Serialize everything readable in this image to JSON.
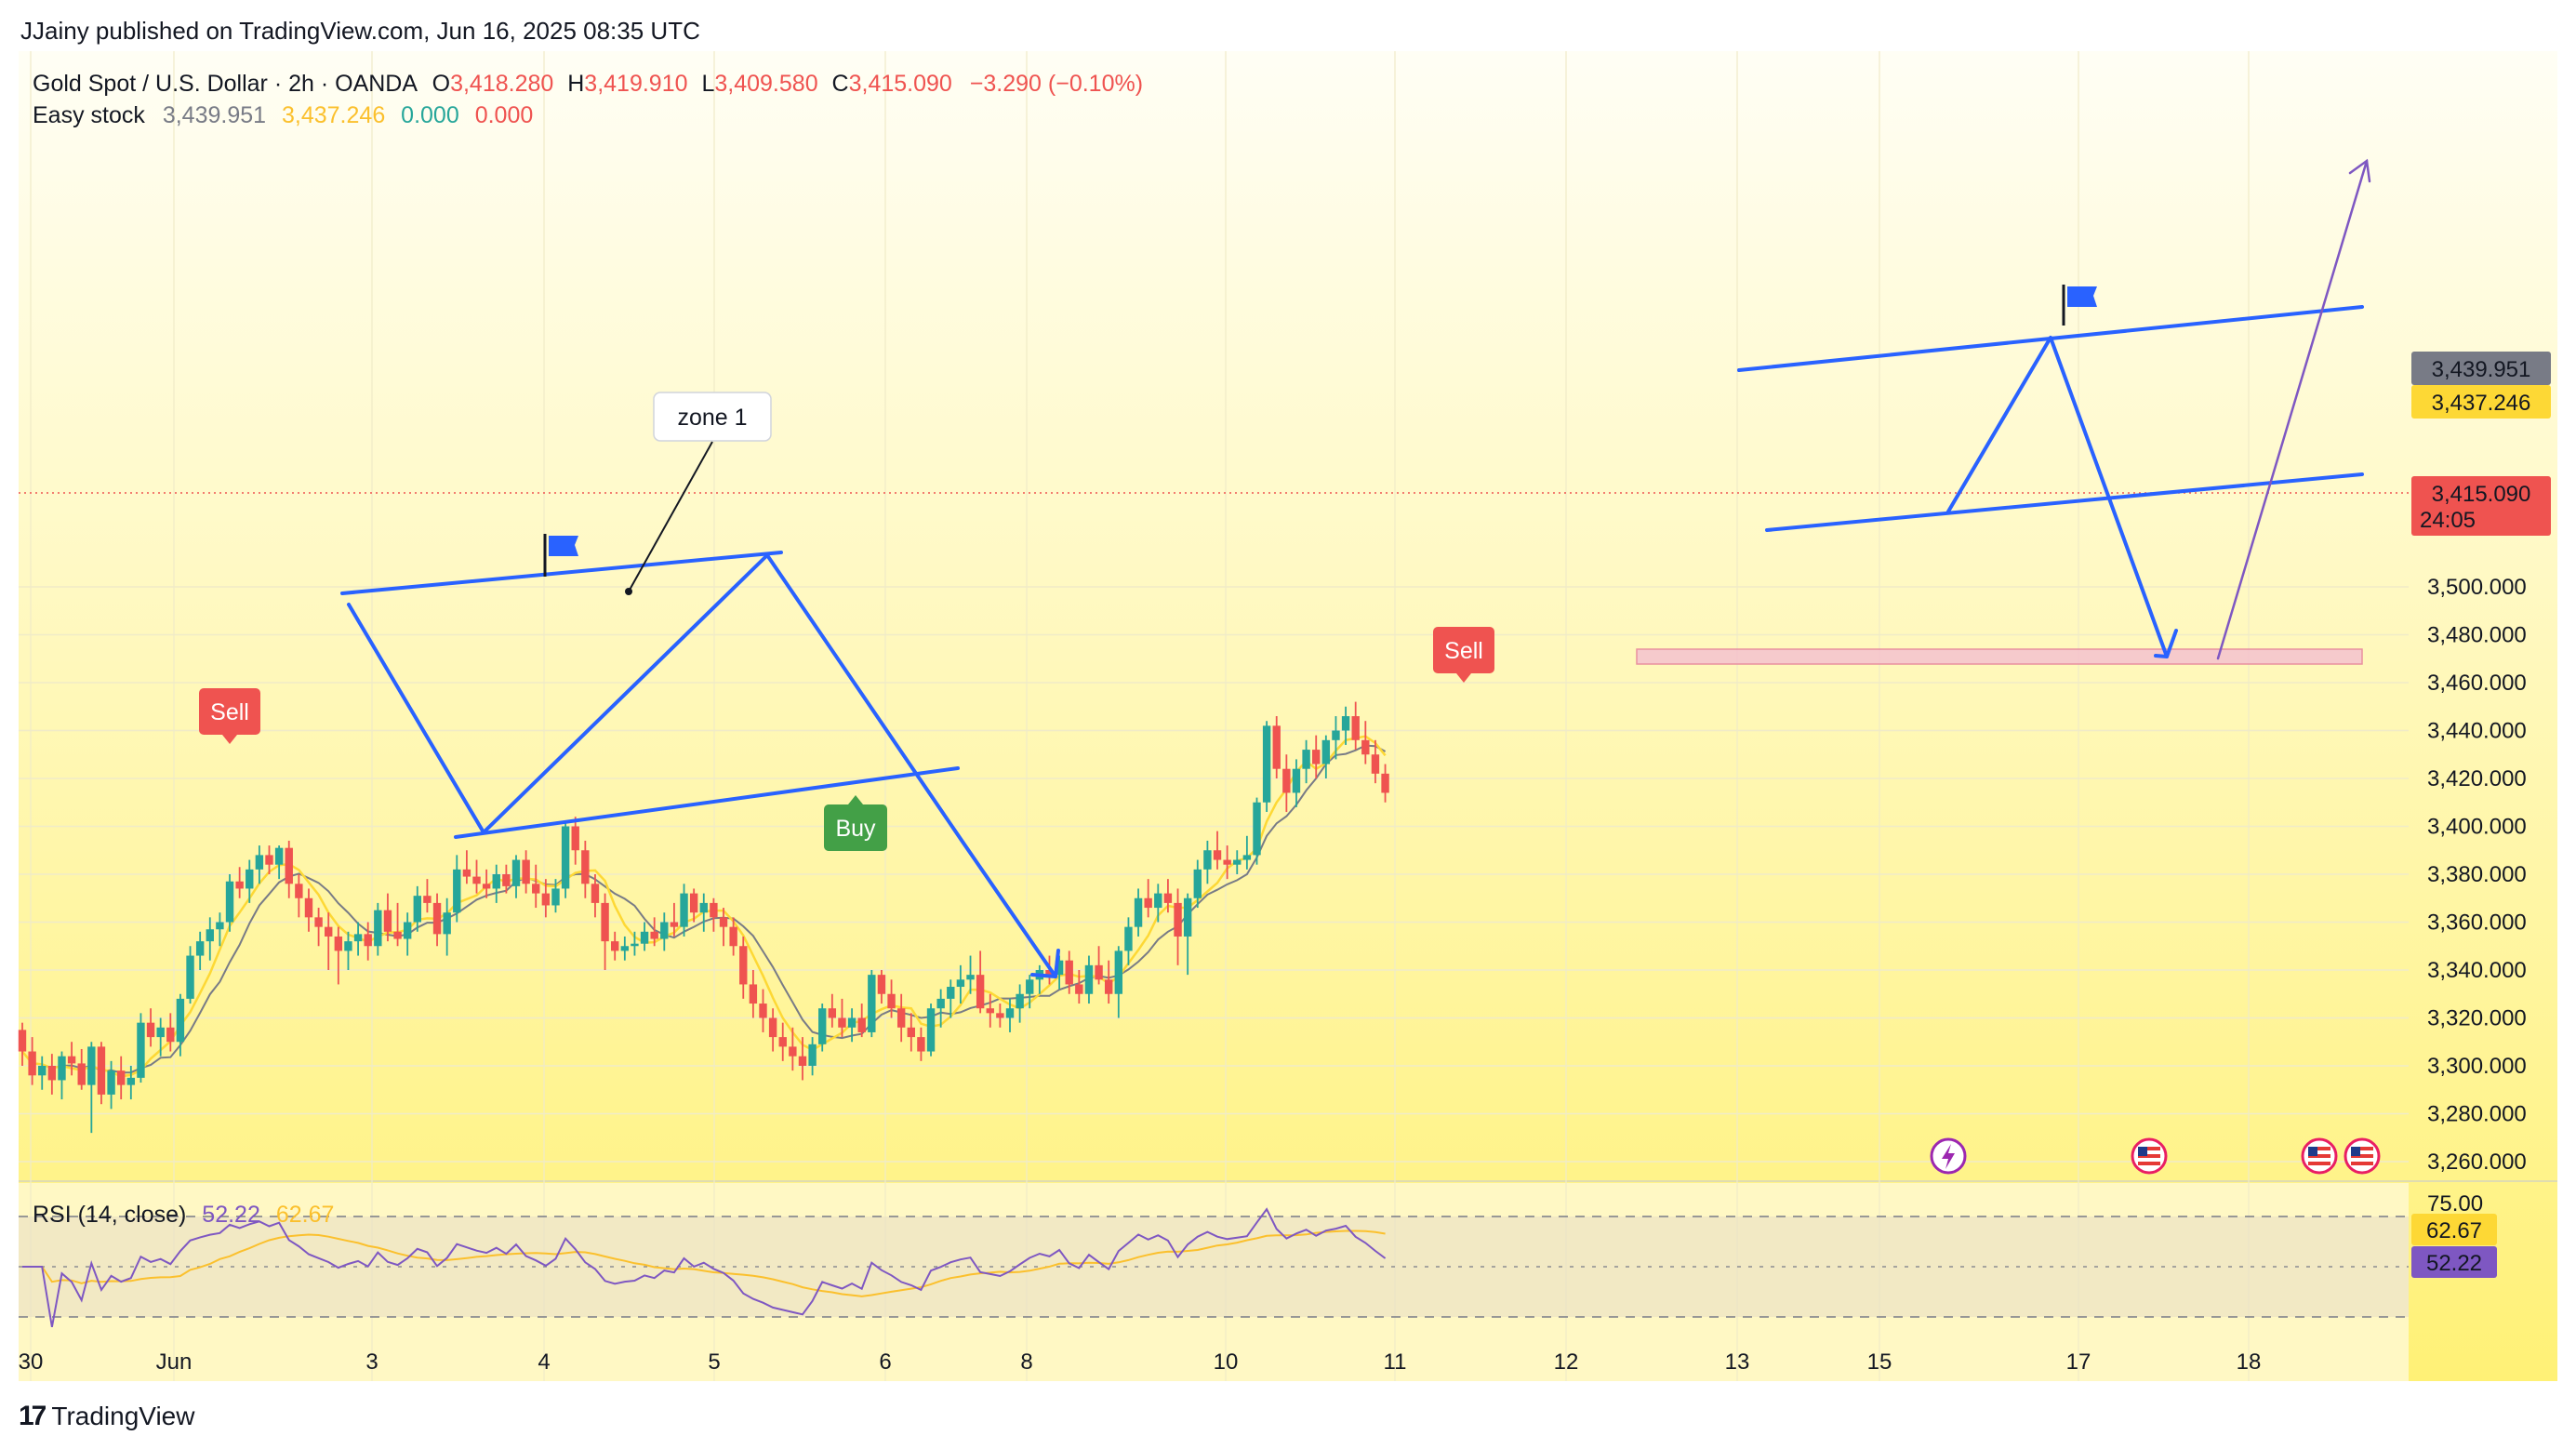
{
  "header": {
    "publish_line": "JJainy published on TradingView.com, Jun 16, 2025 08:35 UTC"
  },
  "legend": {
    "symbol": "Gold Spot / U.S. Dollar · 2h · OANDA",
    "o_label": "O",
    "o_value": "3,418.280",
    "h_label": "H",
    "h_value": "3,419.910",
    "l_label": "L",
    "l_value": "3,409.580",
    "c_label": "C",
    "c_value": "3,415.090",
    "change": "−3.290 (−0.10%)",
    "indicator_name": "Easy stock",
    "ind_v1": "3,439.951",
    "ind_v2": "3,437.246",
    "ind_v3": "0.000",
    "ind_v4": "0.000"
  },
  "rsi": {
    "label": "RSI (14, close)",
    "value": "52.22",
    "ma_value": "62.67",
    "level_upper": "75.00",
    "badge_rsi": "52.22",
    "badge_ma": "62.67"
  },
  "price_badges": {
    "ind1": "3,439.951",
    "ind2": "3,437.246",
    "last": "3,415.090",
    "countdown": "24:05"
  },
  "annotations": {
    "zone_label": "zone 1",
    "sell_label": "Sell",
    "buy_label": "Buy"
  },
  "footer": {
    "logo_text": "TradingView"
  },
  "colors": {
    "up": "#26a69a",
    "down": "#ef5350",
    "bg_top": "#fffde7",
    "bg_bottom": "#fff176",
    "pattern_line": "#2962ff",
    "rsi_line": "#7e57c2",
    "rsi_ma": "#fbc02d",
    "zone_fill": "#f8bbd0",
    "ind_gray": "#787b86",
    "ind_yellow": "#fdd835"
  },
  "chart_data": {
    "type": "candlestick",
    "title": "Gold Spot / U.S. Dollar · 2h · OANDA",
    "y_range": [
      3250,
      3510
    ],
    "y_ticks": [
      3260,
      3280,
      3300,
      3320,
      3340,
      3360,
      3380,
      3400,
      3420,
      3440,
      3460,
      3480,
      3500
    ],
    "y_tick_labels": [
      "3,260.000",
      "3,280.000",
      "3,300.000",
      "3,320.000",
      "3,340.000",
      "3,360.000",
      "3,380.000",
      "3,400.000",
      "3,420.000",
      "3,440.000",
      "3,460.000",
      "3,480.000",
      "3,500.000"
    ],
    "x_ticks": [
      "30",
      "Jun",
      "3",
      "4",
      "5",
      "6",
      "8",
      "10",
      "11",
      "12",
      "13",
      "15",
      "17",
      "18"
    ],
    "grid": true,
    "candles": [
      [
        3315,
        3318,
        3300,
        3306
      ],
      [
        3306,
        3312,
        3292,
        3296
      ],
      [
        3296,
        3304,
        3290,
        3300
      ],
      [
        3300,
        3305,
        3288,
        3294
      ],
      [
        3294,
        3306,
        3286,
        3304
      ],
      [
        3304,
        3310,
        3296,
        3301
      ],
      [
        3301,
        3307,
        3290,
        3292
      ],
      [
        3292,
        3310,
        3272,
        3308
      ],
      [
        3308,
        3310,
        3284,
        3288
      ],
      [
        3288,
        3302,
        3282,
        3298
      ],
      [
        3298,
        3304,
        3286,
        3292
      ],
      [
        3292,
        3300,
        3286,
        3295
      ],
      [
        3295,
        3322,
        3293,
        3318
      ],
      [
        3318,
        3324,
        3308,
        3312
      ],
      [
        3312,
        3320,
        3304,
        3316
      ],
      [
        3316,
        3322,
        3306,
        3310
      ],
      [
        3310,
        3330,
        3304,
        3328
      ],
      [
        3328,
        3350,
        3326,
        3346
      ],
      [
        3346,
        3356,
        3340,
        3352
      ],
      [
        3352,
        3362,
        3344,
        3357
      ],
      [
        3357,
        3364,
        3350,
        3360
      ],
      [
        3360,
        3380,
        3356,
        3377
      ],
      [
        3377,
        3383,
        3370,
        3374
      ],
      [
        3374,
        3386,
        3368,
        3382
      ],
      [
        3382,
        3392,
        3376,
        3388
      ],
      [
        3388,
        3392,
        3380,
        3384
      ],
      [
        3384,
        3392,
        3378,
        3391
      ],
      [
        3391,
        3394,
        3370,
        3376
      ],
      [
        3376,
        3380,
        3362,
        3370
      ],
      [
        3370,
        3374,
        3356,
        3362
      ],
      [
        3362,
        3366,
        3350,
        3358
      ],
      [
        3358,
        3364,
        3340,
        3354
      ],
      [
        3354,
        3358,
        3334,
        3348
      ],
      [
        3348,
        3356,
        3340,
        3352
      ],
      [
        3352,
        3360,
        3346,
        3355
      ],
      [
        3355,
        3360,
        3344,
        3350
      ],
      [
        3350,
        3368,
        3346,
        3365
      ],
      [
        3365,
        3372,
        3352,
        3356
      ],
      [
        3356,
        3368,
        3350,
        3353
      ],
      [
        3353,
        3364,
        3346,
        3360
      ],
      [
        3360,
        3375,
        3356,
        3371
      ],
      [
        3371,
        3378,
        3364,
        3368
      ],
      [
        3368,
        3372,
        3350,
        3355
      ],
      [
        3355,
        3370,
        3346,
        3364
      ],
      [
        3364,
        3388,
        3360,
        3382
      ],
      [
        3382,
        3390,
        3376,
        3379
      ],
      [
        3379,
        3386,
        3372,
        3376
      ],
      [
        3376,
        3382,
        3370,
        3374
      ],
      [
        3374,
        3384,
        3368,
        3380
      ],
      [
        3380,
        3384,
        3372,
        3375
      ],
      [
        3375,
        3388,
        3370,
        3386
      ],
      [
        3386,
        3390,
        3372,
        3376
      ],
      [
        3376,
        3384,
        3366,
        3372
      ],
      [
        3372,
        3378,
        3362,
        3367
      ],
      [
        3367,
        3378,
        3364,
        3374
      ],
      [
        3374,
        3402,
        3370,
        3400
      ],
      [
        3400,
        3404,
        3384,
        3390
      ],
      [
        3390,
        3394,
        3370,
        3376
      ],
      [
        3376,
        3380,
        3362,
        3368
      ],
      [
        3368,
        3372,
        3340,
        3352
      ],
      [
        3352,
        3356,
        3344,
        3348
      ],
      [
        3348,
        3354,
        3344,
        3350
      ],
      [
        3350,
        3356,
        3346,
        3351
      ],
      [
        3351,
        3360,
        3348,
        3356
      ],
      [
        3356,
        3362,
        3350,
        3353
      ],
      [
        3353,
        3364,
        3348,
        3360
      ],
      [
        3360,
        3368,
        3354,
        3358
      ],
      [
        3358,
        3376,
        3354,
        3372
      ],
      [
        3372,
        3374,
        3360,
        3364
      ],
      [
        3364,
        3372,
        3356,
        3368
      ],
      [
        3368,
        3370,
        3356,
        3362
      ],
      [
        3362,
        3366,
        3350,
        3358
      ],
      [
        3358,
        3362,
        3346,
        3350
      ],
      [
        3350,
        3354,
        3328,
        3334
      ],
      [
        3334,
        3340,
        3320,
        3326
      ],
      [
        3326,
        3332,
        3314,
        3320
      ],
      [
        3320,
        3324,
        3306,
        3312
      ],
      [
        3312,
        3318,
        3302,
        3308
      ],
      [
        3308,
        3316,
        3298,
        3304
      ],
      [
        3304,
        3312,
        3294,
        3300
      ],
      [
        3300,
        3312,
        3296,
        3309
      ],
      [
        3309,
        3326,
        3306,
        3324
      ],
      [
        3324,
        3330,
        3316,
        3320
      ],
      [
        3320,
        3328,
        3312,
        3316
      ],
      [
        3316,
        3324,
        3310,
        3320
      ],
      [
        3320,
        3326,
        3312,
        3314
      ],
      [
        3314,
        3340,
        3312,
        3338
      ],
      [
        3338,
        3340,
        3326,
        3330
      ],
      [
        3330,
        3336,
        3320,
        3324
      ],
      [
        3324,
        3330,
        3310,
        3316
      ],
      [
        3316,
        3322,
        3306,
        3312
      ],
      [
        3312,
        3316,
        3302,
        3306
      ],
      [
        3306,
        3326,
        3304,
        3324
      ],
      [
        3324,
        3332,
        3316,
        3328
      ],
      [
        3328,
        3336,
        3320,
        3333
      ],
      [
        3333,
        3342,
        3326,
        3336
      ],
      [
        3336,
        3346,
        3330,
        3338
      ],
      [
        3338,
        3348,
        3322,
        3324
      ],
      [
        3324,
        3330,
        3316,
        3322
      ],
      [
        3322,
        3326,
        3316,
        3320
      ],
      [
        3320,
        3328,
        3314,
        3324
      ],
      [
        3324,
        3334,
        3318,
        3330
      ],
      [
        3330,
        3338,
        3324,
        3336
      ],
      [
        3336,
        3342,
        3330,
        3340
      ],
      [
        3340,
        3346,
        3334,
        3338
      ],
      [
        3338,
        3346,
        3332,
        3344
      ],
      [
        3344,
        3348,
        3330,
        3334
      ],
      [
        3334,
        3340,
        3326,
        3330
      ],
      [
        3330,
        3346,
        3326,
        3342
      ],
      [
        3342,
        3350,
        3334,
        3336
      ],
      [
        3336,
        3344,
        3326,
        3330
      ],
      [
        3330,
        3350,
        3320,
        3348
      ],
      [
        3348,
        3362,
        3342,
        3358
      ],
      [
        3358,
        3374,
        3354,
        3370
      ],
      [
        3370,
        3378,
        3362,
        3366
      ],
      [
        3366,
        3376,
        3360,
        3372
      ],
      [
        3372,
        3378,
        3364,
        3368
      ],
      [
        3368,
        3374,
        3342,
        3354
      ],
      [
        3354,
        3372,
        3338,
        3370
      ],
      [
        3370,
        3386,
        3366,
        3382
      ],
      [
        3382,
        3394,
        3376,
        3390
      ],
      [
        3390,
        3398,
        3382,
        3386
      ],
      [
        3386,
        3392,
        3378,
        3384
      ],
      [
        3384,
        3390,
        3380,
        3386
      ],
      [
        3386,
        3396,
        3382,
        3388
      ],
      [
        3388,
        3412,
        3384,
        3410
      ],
      [
        3410,
        3444,
        3406,
        3442
      ],
      [
        3442,
        3446,
        3420,
        3424
      ],
      [
        3424,
        3430,
        3406,
        3414
      ],
      [
        3414,
        3428,
        3408,
        3424
      ],
      [
        3424,
        3436,
        3418,
        3432
      ],
      [
        3432,
        3438,
        3420,
        3426
      ],
      [
        3426,
        3438,
        3420,
        3436
      ],
      [
        3436,
        3446,
        3428,
        3440
      ],
      [
        3440,
        3450,
        3434,
        3446
      ],
      [
        3446,
        3452,
        3432,
        3436
      ],
      [
        3436,
        3444,
        3426,
        3430
      ],
      [
        3430,
        3436,
        3418,
        3422
      ],
      [
        3422,
        3426,
        3410,
        3414
      ]
    ]
  }
}
